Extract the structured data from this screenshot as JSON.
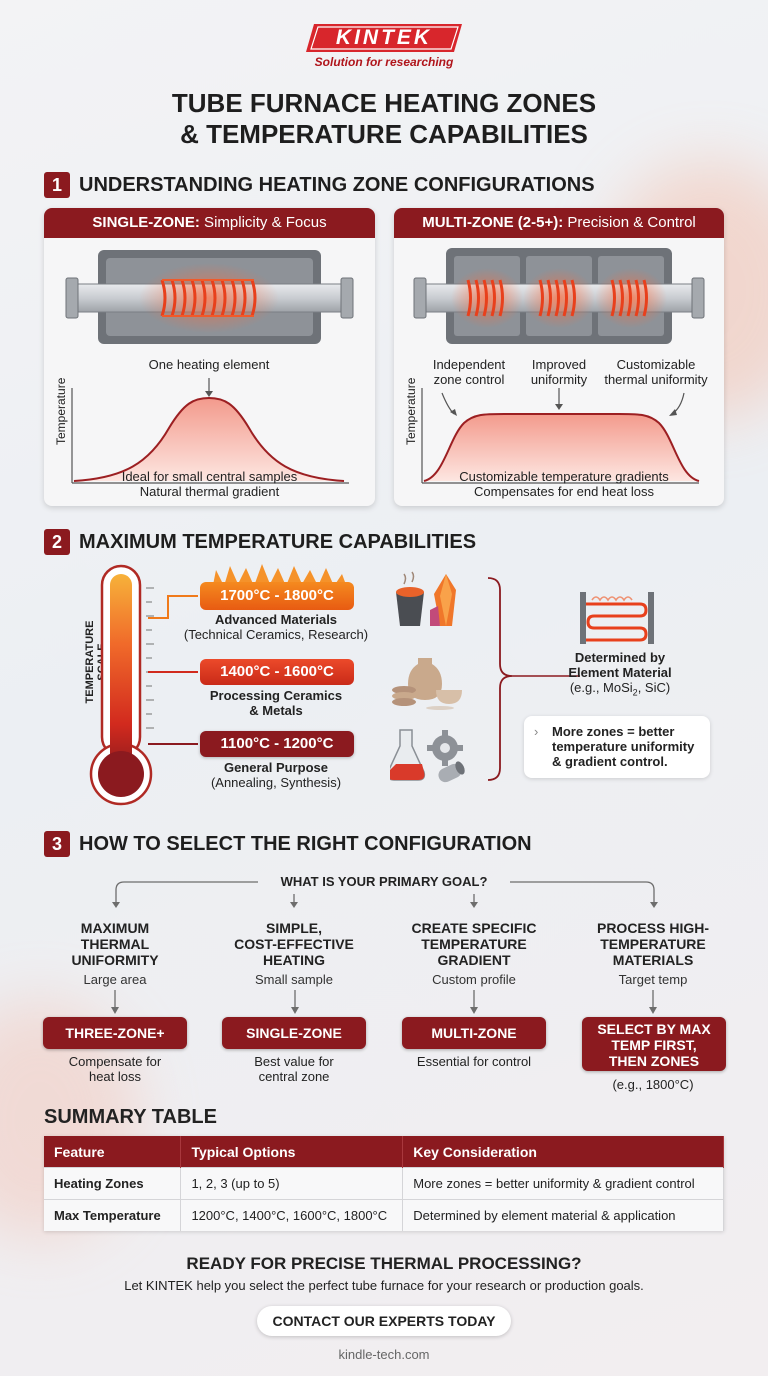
{
  "brand": {
    "logo": "KINTEK",
    "tagline": "Solution for researching"
  },
  "title": {
    "line1": "TUBE FURNACE HEATING ZONES",
    "line2": "& TEMPERATURE CAPABILITIES"
  },
  "section1": {
    "number": "1",
    "title": "UNDERSTANDING HEATING ZONE CONFIGURATIONS",
    "single": {
      "head_bold": "SINGLE-ZONE:",
      "head_rest": " Simplicity & Focus",
      "element_label": "One heating element",
      "axis_label": "Temperature",
      "caption1": "Ideal for small central samples",
      "caption2": "Natural thermal gradient"
    },
    "multi": {
      "head_bold": "MULTI-ZONE (2-5+):",
      "head_rest": " Precision & Control",
      "label_a1": "Independent",
      "label_a2": "zone control",
      "label_b1": "Improved",
      "label_b2": "uniformity",
      "label_c1": "Customizable",
      "label_c2": "thermal uniformity",
      "axis_label": "Temperature",
      "caption1": "Customizable temperature gradients",
      "caption2": "Compensates for end heat loss"
    }
  },
  "section2": {
    "number": "2",
    "title": "MAXIMUM TEMPERATURE CAPABILITIES",
    "scale_label": "TEMPERATURE SCALE",
    "tiers": [
      {
        "range": "1700°C - 1800°C",
        "name": "Advanced Materials",
        "detail": "(Technical Ceramics, Research)"
      },
      {
        "range": "1400°C - 1600°C",
        "name": "Processing Ceramics",
        "detail": "& Metals"
      },
      {
        "range": "1100°C - 1200°C",
        "name": "General Purpose",
        "detail": "(Annealing, Synthesis)"
      }
    ],
    "determined": {
      "line1": "Determined by",
      "line2": "Element Material",
      "line3_a": "(e.g., MoSi",
      "line3_sub": "2",
      "line3_b": ", SiC)"
    },
    "note": {
      "line1": "More zones = better",
      "line2": "temperature uniformity",
      "line3": "& gradient control."
    }
  },
  "section3": {
    "number": "3",
    "title": "HOW TO SELECT THE RIGHT CONFIGURATION",
    "question": "WHAT IS YOUR PRIMARY GOAL?",
    "goals": [
      {
        "t1": "MAXIMUM",
        "t2": "THERMAL",
        "t3": "UNIFORMITY",
        "sub": "Large area",
        "pill1": "THREE-ZONE+",
        "pill2": "",
        "n1": "Compensate for",
        "n2": "heat loss"
      },
      {
        "t1": "SIMPLE,",
        "t2": "COST-EFFECTIVE",
        "t3": "HEATING",
        "sub": "Small sample",
        "pill1": "SINGLE-ZONE",
        "pill2": "",
        "n1": "Best value for",
        "n2": "central zone"
      },
      {
        "t1": "CREATE SPECIFIC",
        "t2": "TEMPERATURE",
        "t3": "GRADIENT",
        "sub": "Custom profile",
        "pill1": "MULTI-ZONE",
        "pill2": "",
        "n1": "Essential for control",
        "n2": ""
      },
      {
        "t1": "PROCESS HIGH-",
        "t2": "TEMPERATURE",
        "t3": "MATERIALS",
        "sub": "Target temp",
        "pill1": "SELECT BY MAX",
        "pill2": "TEMP FIRST,",
        "pill3": "THEN ZONES",
        "n1": "(e.g., 1800°C)",
        "n2": ""
      }
    ]
  },
  "summary": {
    "title": "SUMMARY TABLE",
    "headers": [
      "Feature",
      "Typical Options",
      "Key Consideration"
    ],
    "rows": [
      [
        "Heating Zones",
        "1, 2, 3 (up to 5)",
        "More zones = better uniformity & gradient control"
      ],
      [
        "Max Temperature",
        "1200°C, 1400°C, 1600°C, 1800°C",
        "Determined by element material & application"
      ]
    ]
  },
  "cta": {
    "title": "READY FOR PRECISE THERMAL PROCESSING?",
    "subtitle": "Let KINTEK help you select the perfect tube furnace for your research or production goals.",
    "button": "CONTACT OUR EXPERTS TODAY"
  },
  "footer": "kindle-tech.com",
  "colors": {
    "brand": "#8b1a1f",
    "accent_red": "#d12a1c",
    "orange": "#f07a1a",
    "coil": "#e8401c"
  },
  "icons": [
    "furnace-icon",
    "thermometer-icon",
    "crucible-icon",
    "crystal-icon",
    "pottery-icon",
    "flask-icon",
    "gear-icon",
    "pipe-icon",
    "heating-element-icon"
  ]
}
